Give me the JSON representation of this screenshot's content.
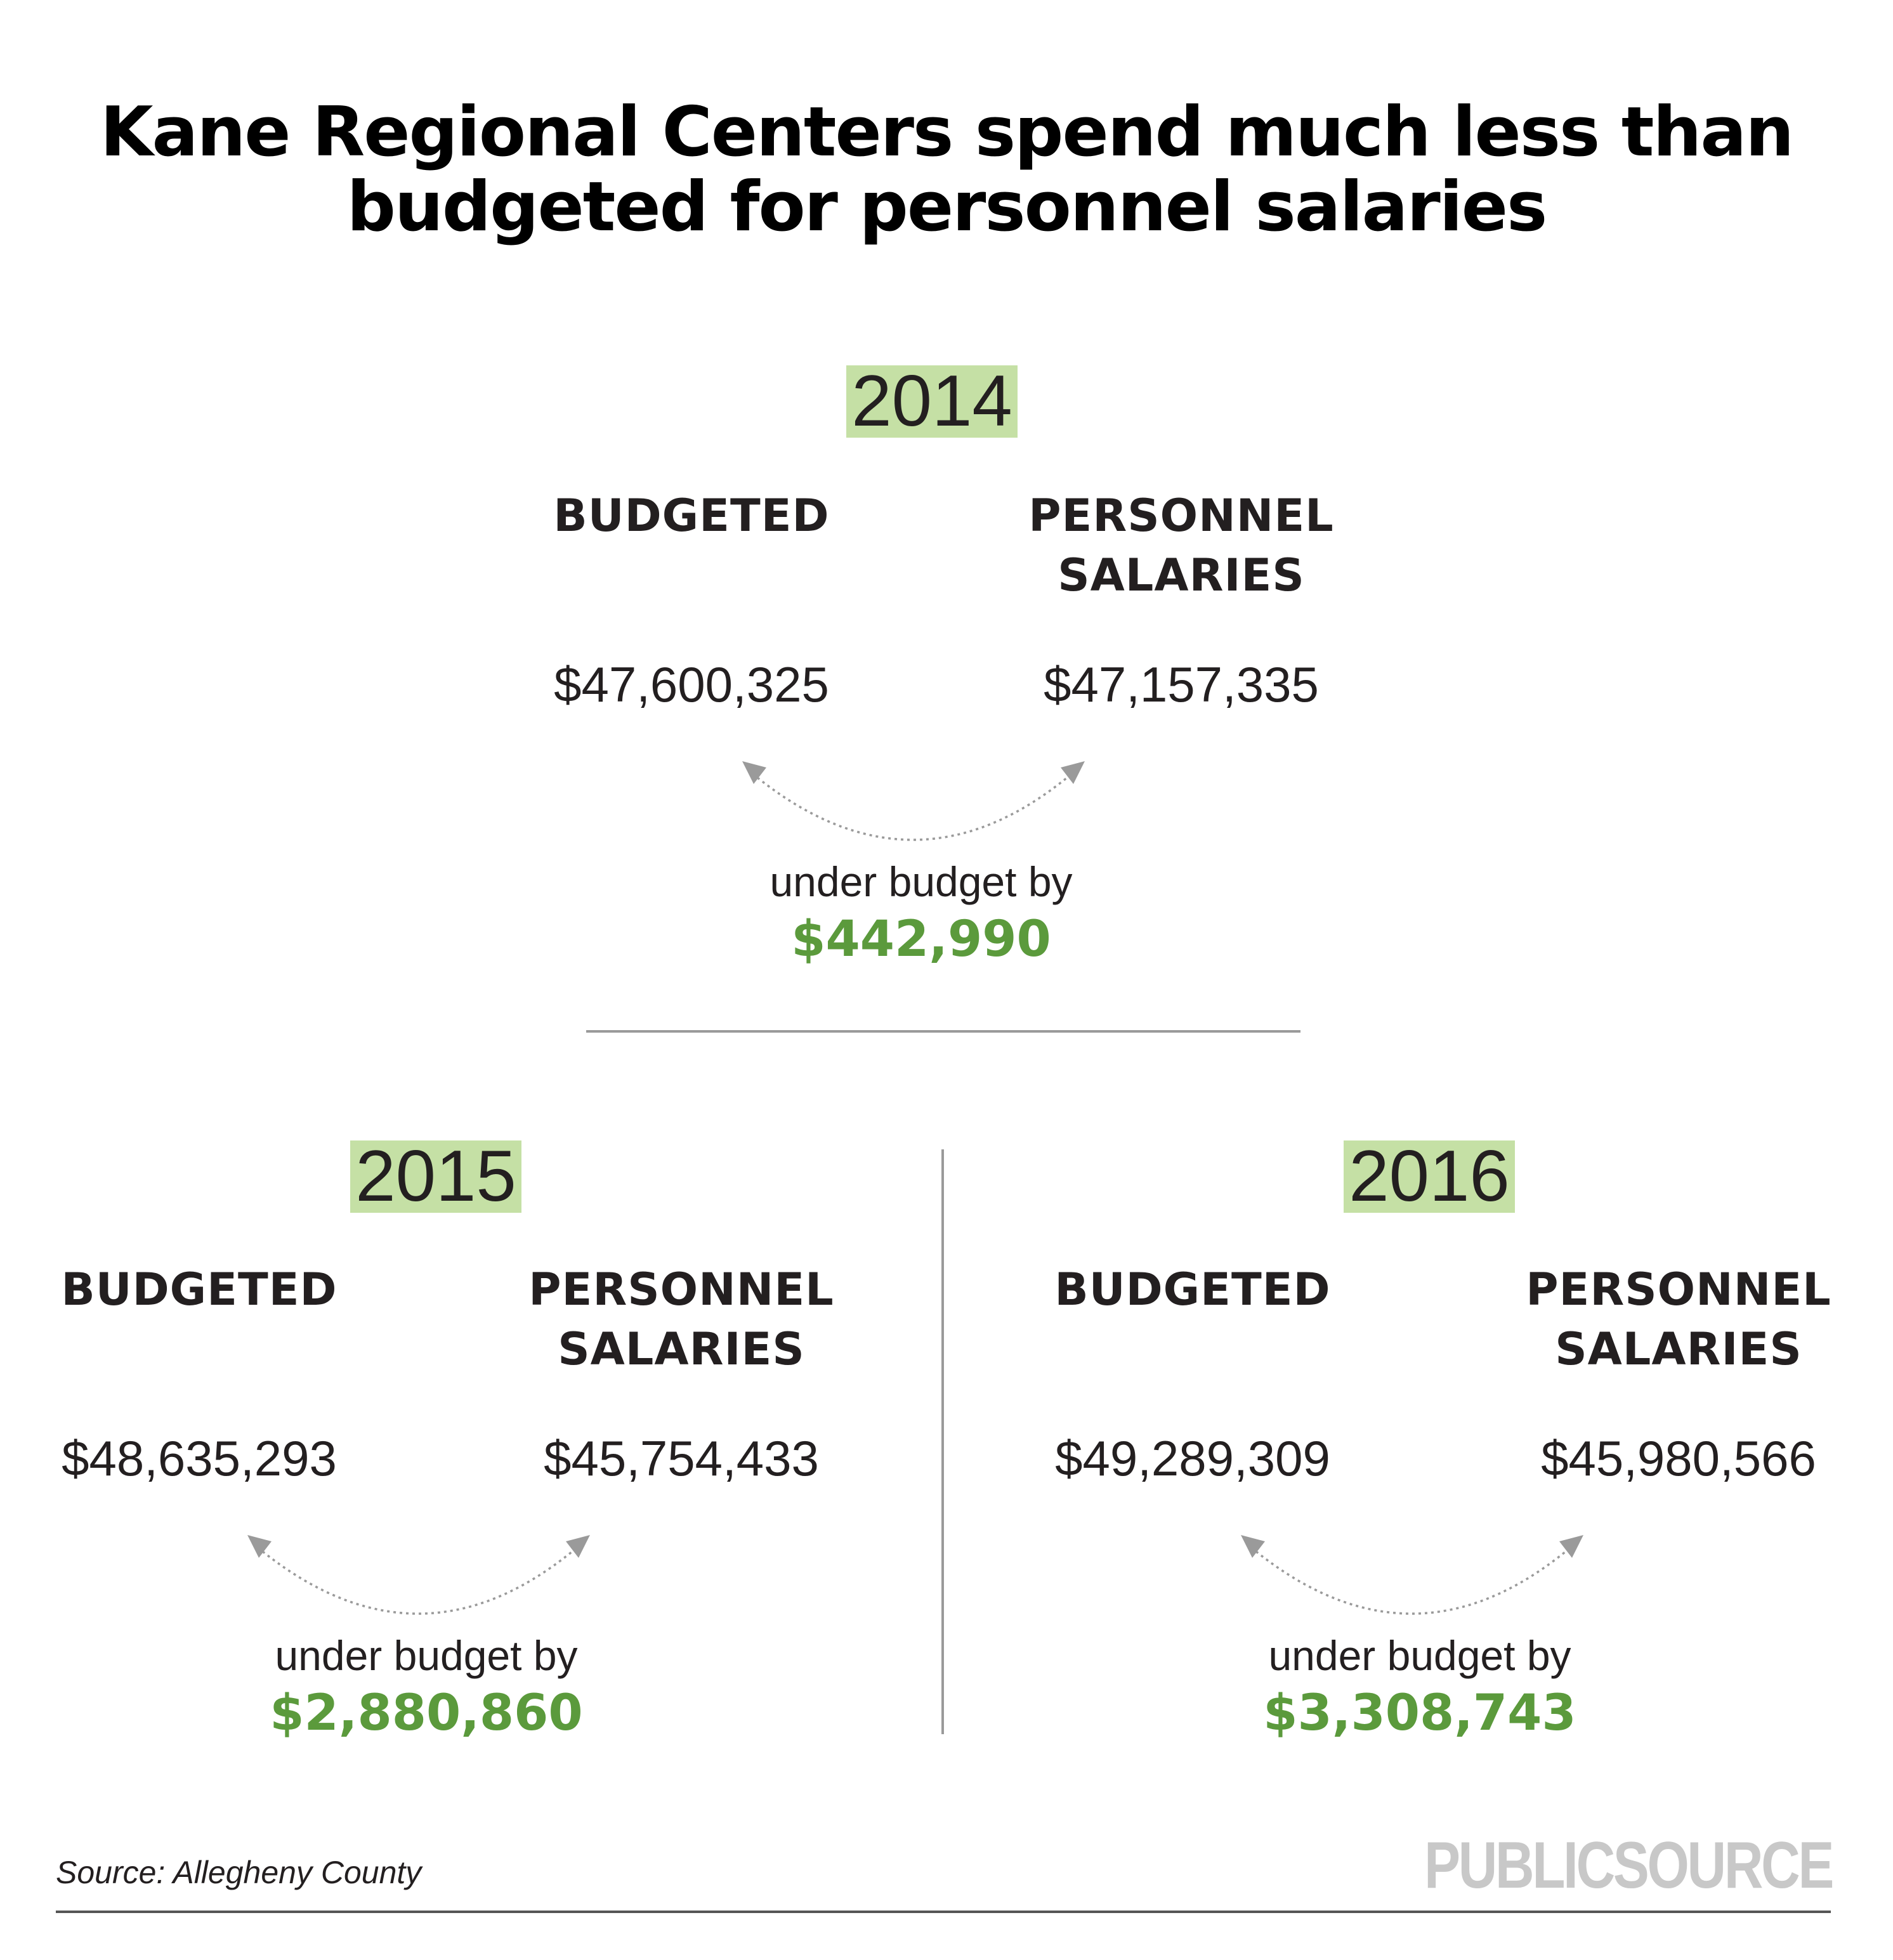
{
  "title": {
    "line1": "Kane Regional Centers spend much less than",
    "line2": "budgeted for personnel salaries"
  },
  "labels": {
    "budgeted": "BUDGETED",
    "personnel_line1": "PERSONNEL",
    "personnel_line2": "SALARIES",
    "under_budget": "under budget by"
  },
  "years": [
    {
      "year": "2014",
      "budgeted": "$47,600,325",
      "personnel_salaries": "$47,157,335",
      "under_budget_amount": "$442,990"
    },
    {
      "year": "2015",
      "budgeted": "$48,635,293",
      "personnel_salaries": "$45,754,433",
      "under_budget_amount": "$2,880,860"
    },
    {
      "year": "2016",
      "budgeted": "$49,289,309",
      "personnel_salaries": "$45,980,566",
      "under_budget_amount": "$3,308,743"
    }
  ],
  "source": "Source: Allegheny County",
  "logo": "PUBLICSOURCE",
  "colors": {
    "year_highlight": "#c5e0a5",
    "under_budget_green": "#5b9a3c",
    "arrow_gray": "#9a9a9a",
    "logo_gray": "#c8c8c8"
  }
}
